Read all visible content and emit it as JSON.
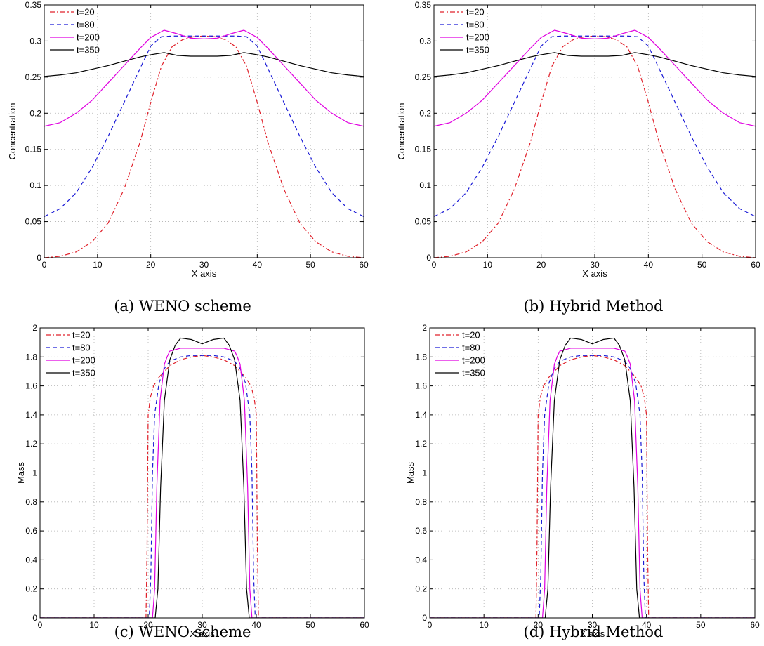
{
  "colors": {
    "t20": "#e0202a",
    "t80": "#1a1ad6",
    "t200": "#e000e0",
    "t350": "#000000",
    "grid": "#b0b0b0"
  },
  "chart_data": [
    {
      "type": "line",
      "caption": "(a) WENO scheme",
      "xlabel": "X axis",
      "ylabel": "Concentration",
      "xlim": [
        0,
        60
      ],
      "ylim": [
        0,
        0.35
      ],
      "xticks": [
        "0",
        "10",
        "20",
        "30",
        "40",
        "50",
        "60"
      ],
      "yticks": [
        "0",
        "0.05",
        "0.1",
        "0.15",
        "0.2",
        "0.25",
        "0.3",
        "0.35"
      ],
      "grid": true,
      "legend_position": "top-left",
      "series": [
        {
          "name": "t=20",
          "color_key": "t20",
          "style": "dashdot",
          "x": [
            0,
            3,
            6,
            9,
            12,
            15,
            18,
            20,
            22,
            24,
            26,
            28,
            30,
            32,
            34,
            36,
            38,
            40,
            42,
            45,
            48,
            51,
            54,
            57,
            60
          ],
          "y": [
            0,
            0.002,
            0.008,
            0.022,
            0.048,
            0.095,
            0.16,
            0.215,
            0.265,
            0.292,
            0.302,
            0.306,
            0.307,
            0.306,
            0.302,
            0.292,
            0.265,
            0.215,
            0.16,
            0.095,
            0.048,
            0.022,
            0.008,
            0.002,
            0
          ]
        },
        {
          "name": "t=80",
          "color_key": "t80",
          "style": "dashed",
          "x": [
            0,
            3,
            6,
            9,
            12,
            15,
            18,
            20,
            22,
            24,
            27,
            30,
            33,
            36,
            38,
            40,
            42,
            45,
            48,
            51,
            54,
            57,
            60
          ],
          "y": [
            0.057,
            0.068,
            0.09,
            0.125,
            0.168,
            0.215,
            0.262,
            0.293,
            0.306,
            0.307,
            0.307,
            0.307,
            0.307,
            0.307,
            0.306,
            0.293,
            0.262,
            0.215,
            0.168,
            0.125,
            0.09,
            0.068,
            0.057
          ]
        },
        {
          "name": "t=200",
          "color_key": "t200",
          "style": "solid",
          "x": [
            0,
            3,
            6,
            9,
            12,
            15,
            18,
            20,
            22.5,
            25,
            27.5,
            30,
            32.5,
            35,
            37.5,
            40,
            42,
            45,
            48,
            51,
            54,
            57,
            60
          ],
          "y": [
            0.182,
            0.187,
            0.2,
            0.218,
            0.242,
            0.266,
            0.29,
            0.305,
            0.315,
            0.31,
            0.304,
            0.303,
            0.304,
            0.31,
            0.315,
            0.305,
            0.29,
            0.266,
            0.242,
            0.218,
            0.2,
            0.187,
            0.182
          ]
        },
        {
          "name": "t=350",
          "color_key": "t350",
          "style": "solid",
          "x": [
            0,
            3,
            6,
            9,
            12,
            15,
            18,
            20,
            22.5,
            25,
            27.5,
            30,
            32.5,
            35,
            37.5,
            40,
            42,
            45,
            48,
            51,
            54,
            57,
            60
          ],
          "y": [
            0.251,
            0.253,
            0.256,
            0.261,
            0.266,
            0.272,
            0.278,
            0.281,
            0.284,
            0.28,
            0.279,
            0.279,
            0.279,
            0.28,
            0.284,
            0.281,
            0.278,
            0.272,
            0.266,
            0.261,
            0.256,
            0.253,
            0.251
          ]
        }
      ]
    },
    {
      "type": "line",
      "caption": "(b) Hybrid Method",
      "xlabel": "X axis",
      "ylabel": "Concentration",
      "xlim": [
        0,
        60
      ],
      "ylim": [
        0,
        0.35
      ],
      "xticks": [
        "0",
        "10",
        "20",
        "30",
        "40",
        "50",
        "60"
      ],
      "yticks": [
        "0",
        "0.05",
        "0.1",
        "0.15",
        "0.2",
        "0.25",
        "0.3",
        "0.35"
      ],
      "grid": true,
      "legend_position": "top-left",
      "series": [
        {
          "name": "t=20",
          "color_key": "t20",
          "style": "dashdot",
          "x": [
            0,
            3,
            6,
            9,
            12,
            15,
            18,
            20,
            22,
            24,
            26,
            28,
            30,
            32,
            34,
            36,
            38,
            40,
            42,
            45,
            48,
            51,
            54,
            57,
            60
          ],
          "y": [
            0,
            0.002,
            0.008,
            0.022,
            0.048,
            0.095,
            0.16,
            0.215,
            0.265,
            0.292,
            0.302,
            0.306,
            0.307,
            0.306,
            0.302,
            0.292,
            0.265,
            0.215,
            0.16,
            0.095,
            0.048,
            0.022,
            0.008,
            0.002,
            0
          ]
        },
        {
          "name": "t=80",
          "color_key": "t80",
          "style": "dashed",
          "x": [
            0,
            3,
            6,
            9,
            12,
            15,
            18,
            20,
            22,
            24,
            27,
            30,
            33,
            36,
            38,
            40,
            42,
            45,
            48,
            51,
            54,
            57,
            60
          ],
          "y": [
            0.057,
            0.068,
            0.09,
            0.125,
            0.168,
            0.215,
            0.262,
            0.293,
            0.306,
            0.307,
            0.307,
            0.307,
            0.307,
            0.307,
            0.306,
            0.293,
            0.262,
            0.215,
            0.168,
            0.125,
            0.09,
            0.068,
            0.057
          ]
        },
        {
          "name": "t=200",
          "color_key": "t200",
          "style": "solid",
          "x": [
            0,
            3,
            6,
            9,
            12,
            15,
            18,
            20,
            22.5,
            25,
            27.5,
            30,
            32.5,
            35,
            37.5,
            40,
            42,
            45,
            48,
            51,
            54,
            57,
            60
          ],
          "y": [
            0.182,
            0.187,
            0.2,
            0.218,
            0.242,
            0.266,
            0.29,
            0.305,
            0.315,
            0.31,
            0.304,
            0.303,
            0.304,
            0.31,
            0.315,
            0.305,
            0.29,
            0.266,
            0.242,
            0.218,
            0.2,
            0.187,
            0.182
          ]
        },
        {
          "name": "t=350",
          "color_key": "t350",
          "style": "solid",
          "x": [
            0,
            3,
            6,
            9,
            12,
            15,
            18,
            20,
            22.5,
            25,
            27.5,
            30,
            32.5,
            35,
            37.5,
            40,
            42,
            45,
            48,
            51,
            54,
            57,
            60
          ],
          "y": [
            0.251,
            0.253,
            0.256,
            0.261,
            0.266,
            0.272,
            0.278,
            0.281,
            0.284,
            0.28,
            0.279,
            0.279,
            0.279,
            0.28,
            0.284,
            0.281,
            0.278,
            0.272,
            0.266,
            0.261,
            0.256,
            0.253,
            0.251
          ]
        }
      ]
    },
    {
      "type": "line",
      "caption": "(c) WENO scheme",
      "xlabel": "X axis",
      "ylabel": "Mass",
      "xlim": [
        0,
        60
      ],
      "ylim": [
        0,
        2
      ],
      "xticks": [
        "0",
        "10",
        "20",
        "30",
        "40",
        "50",
        "60"
      ],
      "yticks": [
        "0",
        "0.2",
        "0.4",
        "0.6",
        "0.8",
        "1",
        "1.2",
        "1.4",
        "1.6",
        "1.8",
        "2"
      ],
      "grid": true,
      "legend_position": "top-left",
      "series": [
        {
          "name": "t=20",
          "color_key": "t20",
          "style": "dashdot",
          "x": [
            0,
            19.6,
            19.8,
            20.0,
            20.4,
            21,
            22,
            23,
            24,
            26,
            28,
            30,
            32,
            34,
            36,
            37,
            38,
            39,
            39.6,
            40.0,
            40.2,
            40.4,
            60
          ],
          "y": [
            0,
            0,
            0.5,
            1.4,
            1.52,
            1.6,
            1.66,
            1.7,
            1.74,
            1.78,
            1.8,
            1.81,
            1.8,
            1.78,
            1.74,
            1.7,
            1.66,
            1.6,
            1.52,
            1.4,
            0.5,
            0,
            0
          ]
        },
        {
          "name": "t=80",
          "color_key": "t80",
          "style": "dashed",
          "x": [
            0,
            20.2,
            20.5,
            20.8,
            21.2,
            22,
            23,
            24,
            26,
            28,
            30,
            32,
            34,
            36,
            37,
            38,
            38.8,
            39.2,
            39.5,
            39.8,
            60
          ],
          "y": [
            0,
            0,
            0.3,
            1.0,
            1.4,
            1.62,
            1.72,
            1.77,
            1.8,
            1.81,
            1.81,
            1.81,
            1.8,
            1.77,
            1.72,
            1.62,
            1.4,
            1.0,
            0.3,
            0,
            0
          ]
        },
        {
          "name": "t=200",
          "color_key": "t200",
          "style": "solid",
          "x": [
            0,
            20.8,
            21.2,
            21.6,
            22.2,
            23,
            23.5,
            24,
            26,
            30,
            34,
            36,
            36.5,
            37,
            37.8,
            38.4,
            38.8,
            39.2,
            60
          ],
          "y": [
            0,
            0,
            0.2,
            0.9,
            1.5,
            1.75,
            1.8,
            1.84,
            1.86,
            1.86,
            1.86,
            1.84,
            1.8,
            1.75,
            1.5,
            0.9,
            0.2,
            0,
            0
          ]
        },
        {
          "name": "t=350",
          "color_key": "t350",
          "style": "solid",
          "x": [
            0,
            21.3,
            21.8,
            22.3,
            23,
            24,
            25,
            26,
            28,
            30,
            32,
            34,
            35,
            36,
            37,
            37.7,
            38.2,
            38.7,
            60
          ],
          "y": [
            0,
            0,
            0.2,
            0.9,
            1.5,
            1.78,
            1.88,
            1.93,
            1.92,
            1.89,
            1.92,
            1.93,
            1.88,
            1.78,
            1.5,
            0.9,
            0.2,
            0,
            0
          ]
        }
      ]
    },
    {
      "type": "line",
      "caption": "(d) Hybrid Method",
      "xlabel": "X axis",
      "ylabel": "Mass",
      "xlim": [
        0,
        60
      ],
      "ylim": [
        0,
        2
      ],
      "xticks": [
        "0",
        "10",
        "20",
        "30",
        "40",
        "50",
        "60"
      ],
      "yticks": [
        "0",
        "0.2",
        "0.4",
        "0.6",
        "0.8",
        "1",
        "1.2",
        "1.4",
        "1.6",
        "1.8",
        "2"
      ],
      "grid": true,
      "legend_position": "top-left",
      "series": [
        {
          "name": "t=20",
          "color_key": "t20",
          "style": "dashdot",
          "x": [
            0,
            19.6,
            19.8,
            20.0,
            20.4,
            21,
            22,
            23,
            24,
            26,
            28,
            30,
            32,
            34,
            36,
            37,
            38,
            39,
            39.6,
            40.0,
            40.2,
            40.4,
            60
          ],
          "y": [
            0,
            0,
            0.5,
            1.4,
            1.52,
            1.6,
            1.66,
            1.7,
            1.74,
            1.78,
            1.8,
            1.81,
            1.8,
            1.78,
            1.74,
            1.7,
            1.66,
            1.6,
            1.52,
            1.4,
            0.5,
            0,
            0
          ]
        },
        {
          "name": "t=80",
          "color_key": "t80",
          "style": "dashed",
          "x": [
            0,
            20.2,
            20.5,
            20.8,
            21.2,
            22,
            23,
            24,
            26,
            28,
            30,
            32,
            34,
            36,
            37,
            38,
            38.8,
            39.2,
            39.5,
            39.8,
            60
          ],
          "y": [
            0,
            0,
            0.3,
            1.0,
            1.4,
            1.62,
            1.72,
            1.77,
            1.8,
            1.81,
            1.81,
            1.81,
            1.8,
            1.77,
            1.72,
            1.62,
            1.4,
            1.0,
            0.3,
            0,
            0
          ]
        },
        {
          "name": "t=200",
          "color_key": "t200",
          "style": "solid",
          "x": [
            0,
            20.8,
            21.2,
            21.6,
            22.2,
            23,
            23.5,
            24,
            26,
            30,
            34,
            36,
            36.5,
            37,
            37.8,
            38.4,
            38.8,
            39.2,
            60
          ],
          "y": [
            0,
            0,
            0.2,
            0.9,
            1.5,
            1.75,
            1.8,
            1.84,
            1.86,
            1.86,
            1.86,
            1.84,
            1.8,
            1.75,
            1.5,
            0.9,
            0.2,
            0,
            0
          ]
        },
        {
          "name": "t=350",
          "color_key": "t350",
          "style": "solid",
          "x": [
            0,
            21.3,
            21.8,
            22.3,
            23,
            24,
            25,
            26,
            28,
            30,
            32,
            34,
            35,
            36,
            37,
            37.7,
            38.2,
            38.7,
            60
          ],
          "y": [
            0,
            0,
            0.2,
            0.9,
            1.5,
            1.78,
            1.88,
            1.93,
            1.92,
            1.89,
            1.92,
            1.93,
            1.88,
            1.78,
            1.5,
            0.9,
            0.2,
            0,
            0
          ]
        }
      ]
    }
  ]
}
